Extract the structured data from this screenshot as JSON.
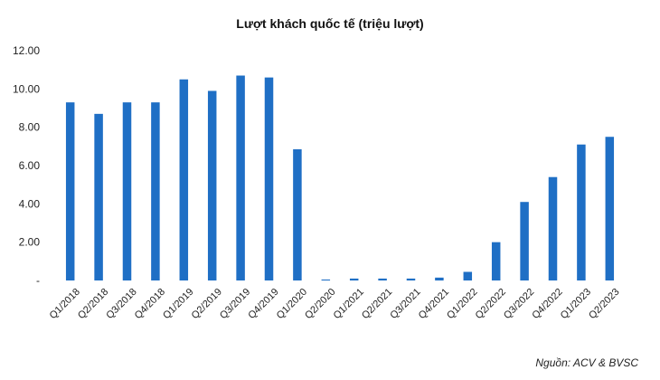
{
  "chart_data": {
    "type": "bar",
    "title": "Lượt khách quốc tế (triệu lượt)",
    "xlabel": "",
    "ylabel": "",
    "categories": [
      "Q1/2018",
      "Q2/2018",
      "Q3/2018",
      "Q4/2018",
      "Q1/2019",
      "Q2/2019",
      "Q3/2019",
      "Q4/2019",
      "Q1/2020",
      "Q2/2020",
      "Q1/2021",
      "Q2/2021",
      "Q3/2021",
      "Q4/2021",
      "Q1/2022",
      "Q2/2022",
      "Q3/2022",
      "Q4/2022",
      "Q1/2023",
      "Q2/2023"
    ],
    "values": [
      9.3,
      8.7,
      9.3,
      9.3,
      10.5,
      9.9,
      10.7,
      10.6,
      6.85,
      0.05,
      0.1,
      0.1,
      0.1,
      0.15,
      0.45,
      2.0,
      4.1,
      5.4,
      7.1,
      7.5
    ],
    "ylim": [
      0,
      12
    ],
    "yticks": [
      0,
      2,
      4,
      6,
      8,
      10,
      12
    ],
    "ytick_labels": [
      "-",
      "2.00",
      "4.00",
      "6.00",
      "8.00",
      "10.00",
      "12.00"
    ],
    "grid": false,
    "bar_color": "#1f6fc5",
    "source": "Nguồn: ACV & BVSC"
  }
}
